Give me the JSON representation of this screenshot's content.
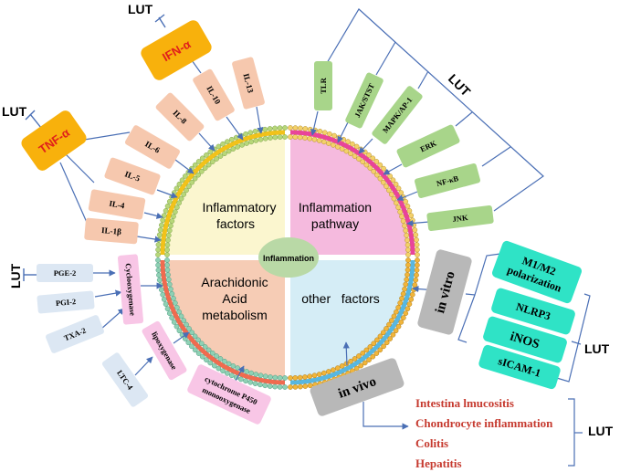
{
  "center": {
    "label": "Inflammation"
  },
  "quadrants": {
    "top_left": {
      "line1": "Inflammatory",
      "line2": "factors",
      "color": "#fbf6cf"
    },
    "top_right": {
      "line1": "Inflammation",
      "line2": "pathway",
      "color": "#f5bade"
    },
    "bottom_left": {
      "line1": "Arachidonic",
      "line2": "Acid",
      "line3": "metabolism",
      "color": "#f6ccb5"
    },
    "bottom_right": {
      "line1": "other   factors",
      "color": "#d5edf6"
    }
  },
  "inhibitor_label": "LUT",
  "cytokines": {
    "ifn": "IFN-α",
    "tnf": "TNF-α",
    "il13": "IL-13",
    "il10": "IL-10",
    "il8": "IL-8",
    "il6": "IL-6",
    "il5": "IL-5",
    "il4": "IL-4",
    "il1b": "IL-1β"
  },
  "pathways": {
    "tlr": "TLR",
    "jak": "JAK/STST",
    "mapk": "MAPK/AP-1",
    "erk": "ERK",
    "nfkb": "NF-κB",
    "jnk": "JNK"
  },
  "arachidonic": {
    "pge2": "PGE-2",
    "pgi2": "PGI-2",
    "txa2": "TXA-2",
    "ltc4": "LTC-4",
    "cox": "Cyclooxygenase",
    "lox": "lipoxygenase",
    "cyp_line1": "cytochrome P450",
    "cyp_line2": "monooxygenase"
  },
  "other": {
    "in_vitro": "in vitro",
    "in_vivo": "in vivo",
    "m1m2_line1": "M1/M2",
    "m1m2_line2": "polarization",
    "nlrp3": "NLRP3",
    "inos": "iNOS",
    "sicam": "sICAM-1",
    "diseases": [
      "Intestina lmucositis",
      "Chondrocyte inflammation",
      "Colitis",
      "Hepatitis"
    ]
  },
  "colors": {
    "orange": "#f8b10c",
    "salmon": "#f6c8ae",
    "green": "#a8d58a",
    "blue_box": "#dce7f3",
    "pink_box": "#f8c6e6",
    "teal": "#2fe3c6",
    "gray": "#b8b8b8",
    "arrow": "#4a6fb5",
    "disease_red": "#c63a2f"
  }
}
